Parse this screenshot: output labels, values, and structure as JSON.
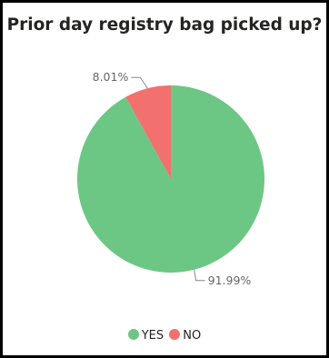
{
  "chart_data": {
    "type": "pie",
    "title": "Prior day registry bag picked up?",
    "slices": [
      {
        "label": "YES",
        "value": 91.99,
        "display": "91.99%",
        "color": "#6cc784"
      },
      {
        "label": "NO",
        "value": 8.01,
        "display": "8.01%",
        "color": "#f2706d"
      }
    ],
    "legend_position": "bottom-center"
  }
}
